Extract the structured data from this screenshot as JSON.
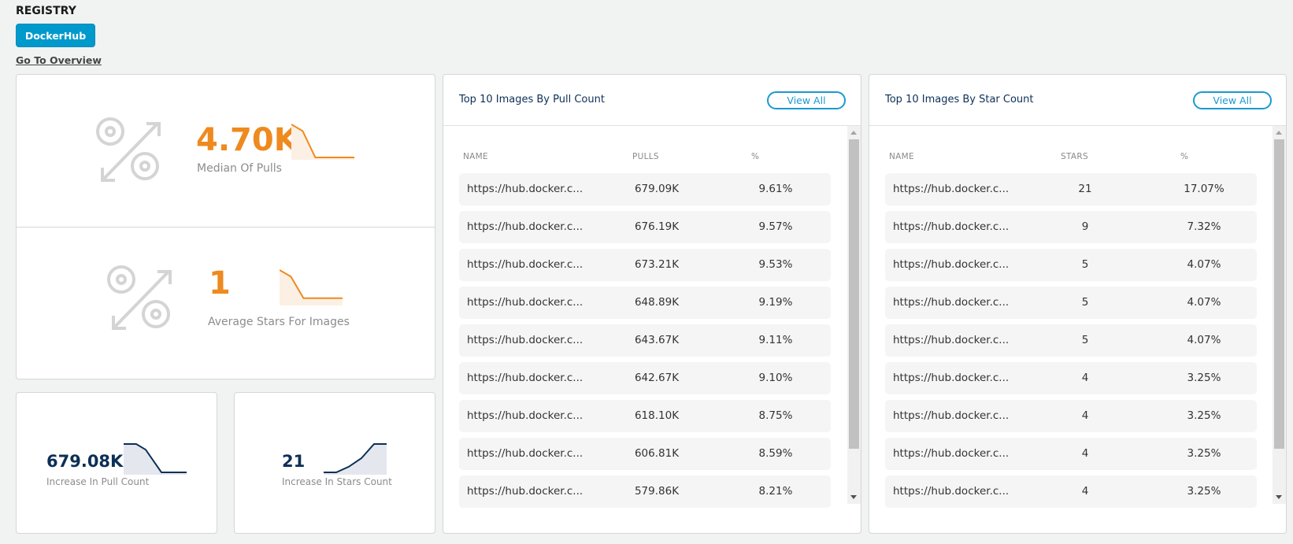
{
  "header": {
    "title": "REGISTRY",
    "registry_button": "DockerHub",
    "overview_link": "Go To Overview"
  },
  "colors": {
    "accent_blue": "#0099cc",
    "kpi_orange": "#ee8a1e",
    "kpi_navy": "#0d2f57"
  },
  "kpis": {
    "median_pulls": {
      "value": "4.70K",
      "label": "Median Of Pulls",
      "icon": "percent-arrows-icon",
      "trend": [
        1.0,
        0.8,
        0.0,
        0.0,
        0.0
      ]
    },
    "average_stars": {
      "value": "1",
      "label": "Average Stars For Images",
      "icon": "percent-arrows-icon",
      "trend": [
        1.0,
        0.8,
        0.15,
        0.15,
        0.15
      ]
    },
    "pull_increase": {
      "value": "679.08K",
      "label": "Increase In Pull Count",
      "trend": [
        1.0,
        1.0,
        0.8,
        0.0,
        0.0,
        0.0
      ]
    },
    "stars_increase": {
      "value": "21",
      "label": "Increase In Stars Count",
      "trend": [
        0.0,
        0.0,
        0.2,
        0.5,
        1.0,
        1.0
      ]
    }
  },
  "pull_table": {
    "title": "Top 10 Images By Pull Count",
    "view_all": "View All",
    "columns": [
      "NAME",
      "PULLS",
      "%"
    ],
    "rows": [
      {
        "name": "https://hub.docker.c...",
        "value": "679.09K",
        "pct": "9.61%"
      },
      {
        "name": "https://hub.docker.c...",
        "value": "676.19K",
        "pct": "9.57%"
      },
      {
        "name": "https://hub.docker.c...",
        "value": "673.21K",
        "pct": "9.53%"
      },
      {
        "name": "https://hub.docker.c...",
        "value": "648.89K",
        "pct": "9.19%"
      },
      {
        "name": "https://hub.docker.c...",
        "value": "643.67K",
        "pct": "9.11%"
      },
      {
        "name": "https://hub.docker.c...",
        "value": "642.67K",
        "pct": "9.10%"
      },
      {
        "name": "https://hub.docker.c...",
        "value": "618.10K",
        "pct": "8.75%"
      },
      {
        "name": "https://hub.docker.c...",
        "value": "606.81K",
        "pct": "8.59%"
      },
      {
        "name": "https://hub.docker.c...",
        "value": "579.86K",
        "pct": "8.21%"
      }
    ]
  },
  "star_table": {
    "title": "Top 10 Images By Star Count",
    "view_all": "View All",
    "columns": [
      "NAME",
      "STARS",
      "%"
    ],
    "rows": [
      {
        "name": "https://hub.docker.c...",
        "value": "21",
        "pct": "17.07%"
      },
      {
        "name": "https://hub.docker.c...",
        "value": "9",
        "pct": "7.32%"
      },
      {
        "name": "https://hub.docker.c...",
        "value": "5",
        "pct": "4.07%"
      },
      {
        "name": "https://hub.docker.c...",
        "value": "5",
        "pct": "4.07%"
      },
      {
        "name": "https://hub.docker.c...",
        "value": "5",
        "pct": "4.07%"
      },
      {
        "name": "https://hub.docker.c...",
        "value": "4",
        "pct": "3.25%"
      },
      {
        "name": "https://hub.docker.c...",
        "value": "4",
        "pct": "3.25%"
      },
      {
        "name": "https://hub.docker.c...",
        "value": "4",
        "pct": "3.25%"
      },
      {
        "name": "https://hub.docker.c...",
        "value": "4",
        "pct": "3.25%"
      }
    ]
  }
}
